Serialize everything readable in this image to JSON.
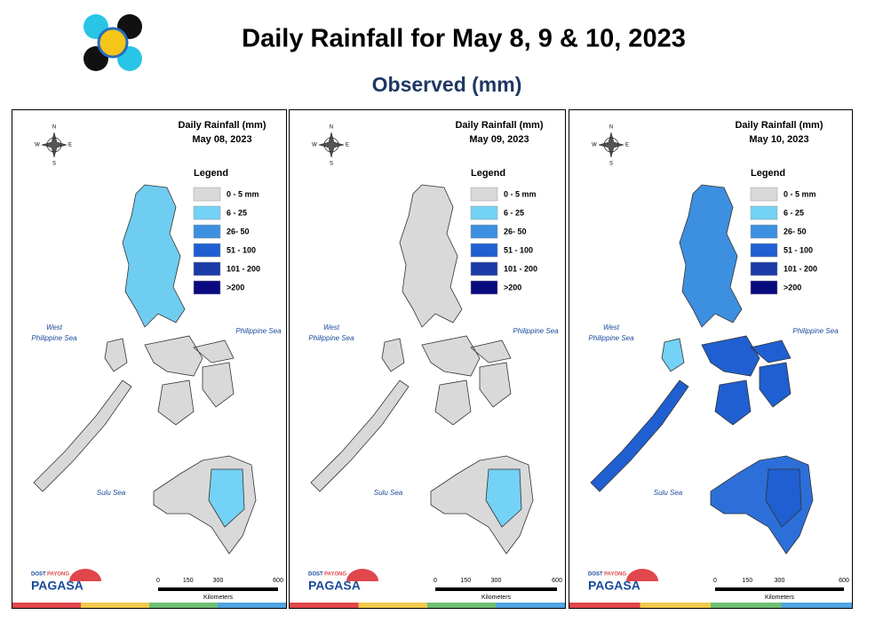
{
  "header": {
    "title": "Daily Rainfall for May 8, 9 & 10, 2023",
    "subtitle": "Observed (mm)"
  },
  "map_labels": {
    "heading": "Daily Rainfall (mm)",
    "legend_title": "Legend",
    "legend": [
      {
        "label": "0 - 5 mm",
        "color": "#d9d9d9"
      },
      {
        "label": "6 - 25",
        "color": "#73d2f5"
      },
      {
        "label": "26- 50",
        "color": "#3d8fe0"
      },
      {
        "label": "51 - 100",
        "color": "#1f5fd1"
      },
      {
        "label": "101 - 200",
        "color": "#1a3aa8"
      },
      {
        "label": ">200",
        "color": "#0a0a80"
      }
    ],
    "west_sea": [
      "West",
      "Philippine Sea"
    ],
    "east_sea": "Philippine Sea",
    "south_sea": "Sulu Sea",
    "compass": [
      "N",
      "S",
      "E",
      "W"
    ],
    "scale": {
      "ticks": [
        "0",
        "150",
        "300",
        "600"
      ],
      "unit": "Kilometers"
    },
    "logo": {
      "agency": "DOST",
      "tagline": "PAYONG",
      "name": "PAGASA"
    }
  },
  "panels": [
    {
      "date": "May 08, 2023",
      "fills": {
        "luzon": "#6fcdf2",
        "mindoro": "#d9d9d9",
        "visayas": "#d9d9d9",
        "palawan": "#d9d9d9",
        "mindanao": "#d9d9d9",
        "patch": "#73d2f5"
      }
    },
    {
      "date": "May 09, 2023",
      "fills": {
        "luzon": "#d9d9d9",
        "mindoro": "#d9d9d9",
        "visayas": "#d9d9d9",
        "palawan": "#d9d9d9",
        "mindanao": "#d9d9d9",
        "patch": "#73d2f5"
      }
    },
    {
      "date": "May 10, 2023",
      "fills": {
        "luzon": "#3d8fe0",
        "mindoro": "#73d2f5",
        "visayas": "#1f5fd1",
        "palawan": "#1f5fd1",
        "mindanao": "#2d6fd8",
        "patch": "#1f5fd1"
      }
    }
  ]
}
